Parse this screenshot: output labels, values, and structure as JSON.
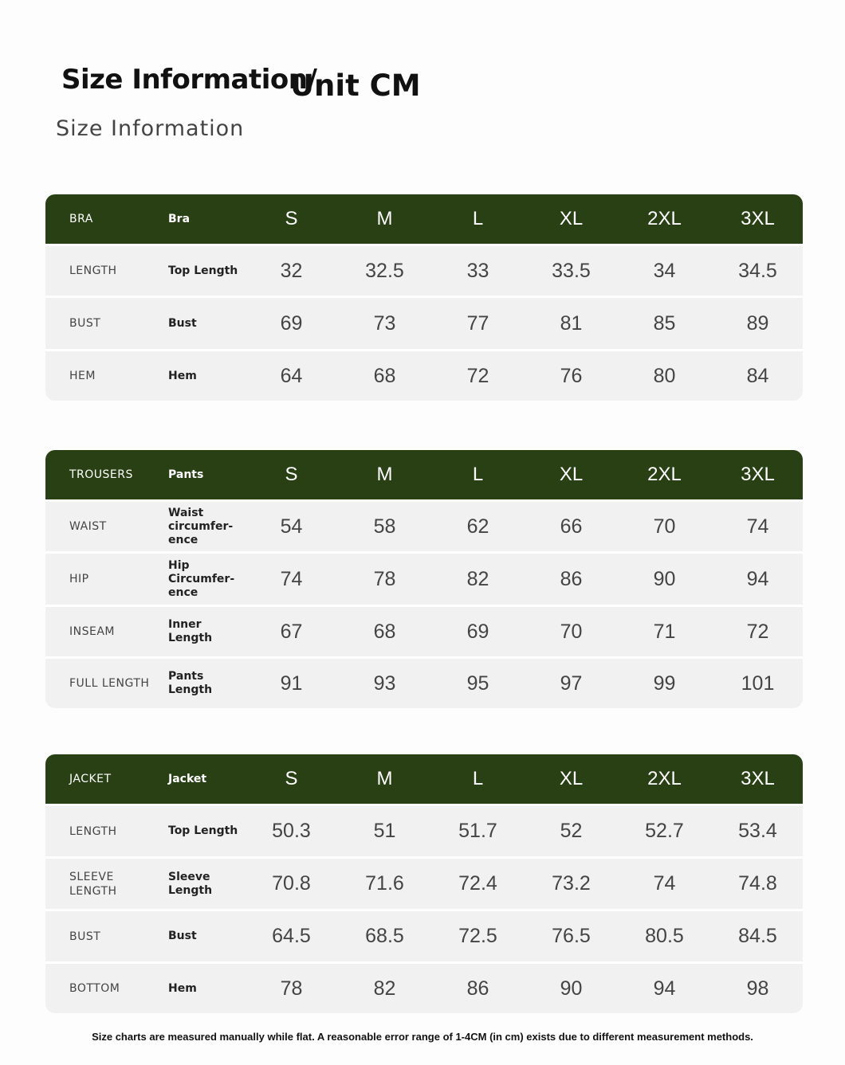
{
  "header": {
    "title_main": "Size Information/",
    "title_unit": "Unit CM",
    "subtitle": "Size Information"
  },
  "tables": [
    {
      "header": [
        "BRA",
        "Bra",
        "S",
        "M",
        "L",
        "XL",
        "2XL",
        "3XL"
      ],
      "rows": [
        [
          "LENGTH",
          "Top Length",
          "32",
          "32.5",
          "33",
          "33.5",
          "34",
          "34.5"
        ],
        [
          "BUST",
          "Bust",
          "69",
          "73",
          "77",
          "81",
          "85",
          "89"
        ],
        [
          "HEM",
          "Hem",
          "64",
          "68",
          "72",
          "76",
          "80",
          "84"
        ]
      ]
    },
    {
      "header": [
        "TROUSERS",
        "Pants",
        "S",
        "M",
        "L",
        "XL",
        "2XL",
        "3XL"
      ],
      "rows": [
        [
          "WAIST",
          "Waist\ncircumfer-\nence",
          "54",
          "58",
          "62",
          "66",
          "70",
          "74"
        ],
        [
          "HIP",
          "Hip\nCircumfer-\nence",
          "74",
          "78",
          "82",
          "86",
          "90",
          "94"
        ],
        [
          "INSEAM",
          "Inner Length",
          "67",
          "68",
          "69",
          "70",
          "71",
          "72"
        ],
        [
          "FULL LENGTH",
          "Pants Length",
          "91",
          "93",
          "95",
          "97",
          "99",
          "101"
        ]
      ]
    },
    {
      "header": [
        "JACKET",
        "Jacket",
        "S",
        "M",
        "L",
        "XL",
        "2XL",
        "3XL"
      ],
      "rows": [
        [
          "LENGTH",
          "Top Length",
          "50.3",
          "51",
          "51.7",
          "52",
          "52.7",
          "53.4"
        ],
        [
          "SLEEVE\nLENGTH",
          "Sleeve\nLength",
          "70.8",
          "71.6",
          "72.4",
          "73.2",
          "74",
          "74.8"
        ],
        [
          "BUST",
          "Bust",
          "64.5",
          "68.5",
          "72.5",
          "76.5",
          "80.5",
          "84.5"
        ],
        [
          "BOTTOM",
          "Hem",
          "78",
          "82",
          "86",
          "90",
          "94",
          "98"
        ]
      ]
    }
  ],
  "footer": {
    "note": "Size charts are measured manually while flat. A reasonable error range of 1-4CM (in cm) exists due to different measurement methods."
  }
}
